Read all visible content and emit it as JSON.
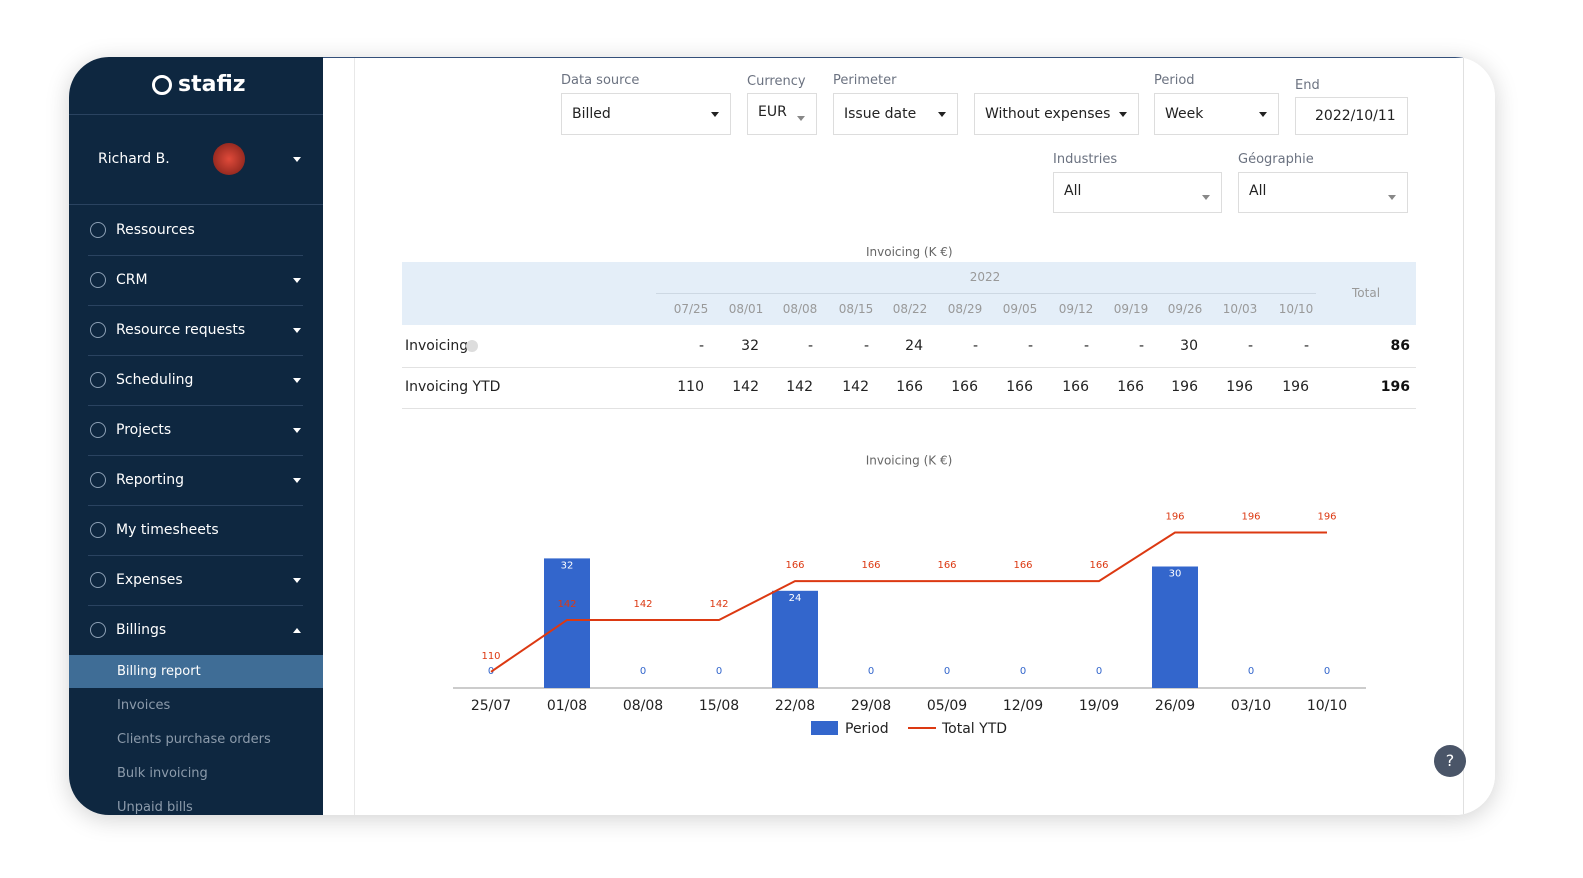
{
  "sidebar": {
    "logo": "stafiz",
    "user": "Richard B.",
    "menu": [
      "Ressources",
      "CRM",
      "Resource requests",
      "Scheduling",
      "Projects",
      "Reporting",
      "My timesheets",
      "Expenses",
      "Billings"
    ],
    "submenu": [
      "Billing report",
      "Invoices",
      "Clients purchase orders",
      "Bulk invoicing",
      "Unpaid bills"
    ]
  },
  "filters": [
    {
      "label": "Data source",
      "value": "Billed"
    },
    {
      "label": "Currency",
      "value": "EUR"
    },
    {
      "label": "Perimeter",
      "value": "Issue date"
    },
    {
      "value": "Without expenses"
    },
    {
      "label": "Period",
      "value": "Week"
    },
    {
      "label": "End",
      "value": "2022/10/11"
    },
    {
      "label": "Industries",
      "value": "All"
    },
    {
      "label": "Géographie",
      "value": "All"
    }
  ],
  "table": {
    "title": "Invoicing (K €)",
    "year": "2022",
    "columns": [
      "07/25",
      "08/01",
      "08/08",
      "08/15",
      "08/22",
      "08/29",
      "09/05",
      "09/12",
      "09/19",
      "09/26",
      "10/03",
      "10/10"
    ],
    "total_header": "Total",
    "rows": [
      {
        "label": "Invoicing",
        "cells": [
          "-",
          32,
          "-",
          "-",
          24,
          "-",
          "-",
          "-",
          "-",
          30,
          "-",
          "-"
        ],
        "total": 86
      },
      {
        "label": "Invoicing YTD",
        "cells": [
          110,
          142,
          142,
          142,
          166,
          166,
          166,
          166,
          166,
          196,
          196,
          196
        ],
        "total": 196
      }
    ]
  },
  "chart_data": {
    "type": "bar",
    "title": "Invoicing (K €)",
    "categories": [
      "25/07",
      "01/08",
      "08/08",
      "15/08",
      "22/08",
      "29/08",
      "05/09",
      "12/09",
      "19/09",
      "26/09",
      "03/10",
      "10/10"
    ],
    "series": [
      {
        "name": "Period",
        "color": "#3366cc",
        "values": [
          0,
          32,
          0,
          0,
          24,
          0,
          0,
          0,
          0,
          30,
          0,
          0
        ]
      },
      {
        "name": "Total YTD",
        "color": "#dc3912",
        "type": "line",
        "axis": "y2",
        "values": [
          110,
          142,
          142,
          142,
          166,
          166,
          166,
          166,
          166,
          196,
          196,
          196
        ]
      }
    ],
    "ylim": [
      0,
      40
    ],
    "y2lim": [
      100,
      200
    ],
    "legend": "bottom"
  }
}
